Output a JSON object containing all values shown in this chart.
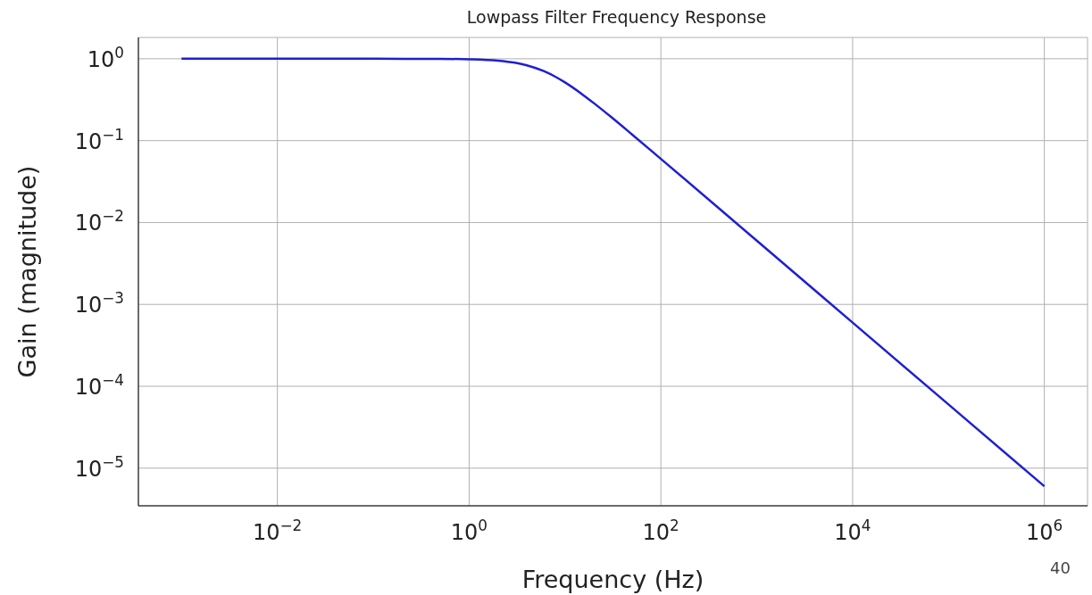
{
  "chart_data": {
    "type": "line",
    "title": "Lowpass Filter Frequency Response",
    "xlabel": "Frequency (Hz)",
    "ylabel": "Gain (magnitude)",
    "x": [
      0.001,
      0.01,
      0.1,
      0.5,
      1,
      2,
      3,
      4,
      6,
      8,
      10,
      15,
      20,
      30,
      50,
      100,
      1000,
      10000,
      100000,
      1000000
    ],
    "series": [
      {
        "color": "#1f1fd0",
        "values": [
          1,
          1,
          1,
          0.9965,
          0.986,
          0.949,
          0.894,
          0.832,
          0.707,
          0.6,
          0.514,
          0.371,
          0.287,
          0.196,
          0.119,
          0.0599,
          0.006,
          0.0006,
          6e-05,
          6e-06
        ]
      }
    ],
    "log": "xy",
    "grid": true,
    "xlim": [
      0.000355,
      2820000
    ],
    "ylim": [
      3.47e-06,
      1.82
    ],
    "xticks": [
      {
        "value": 0.01,
        "label": "10$^{−2}$"
      },
      {
        "value": 1,
        "label": "10$^{0}$"
      },
      {
        "value": 100,
        "label": "10$^{2}$"
      },
      {
        "value": 10000,
        "label": "10$^{4}$"
      },
      {
        "value": 1000000,
        "label": "10$^{6}$"
      }
    ],
    "yticks": [
      {
        "value": 1e-05,
        "label": "10$^{−5}$"
      },
      {
        "value": 0.0001,
        "label": "10$^{−4}$"
      },
      {
        "value": 0.001,
        "label": "10$^{−3}$"
      },
      {
        "value": 0.01,
        "label": "10$^{−2}$"
      },
      {
        "value": 0.1,
        "label": "10$^{−1}$"
      },
      {
        "value": 1,
        "label": "10$^{0}$"
      }
    ],
    "annotations": [
      "40"
    ]
  }
}
